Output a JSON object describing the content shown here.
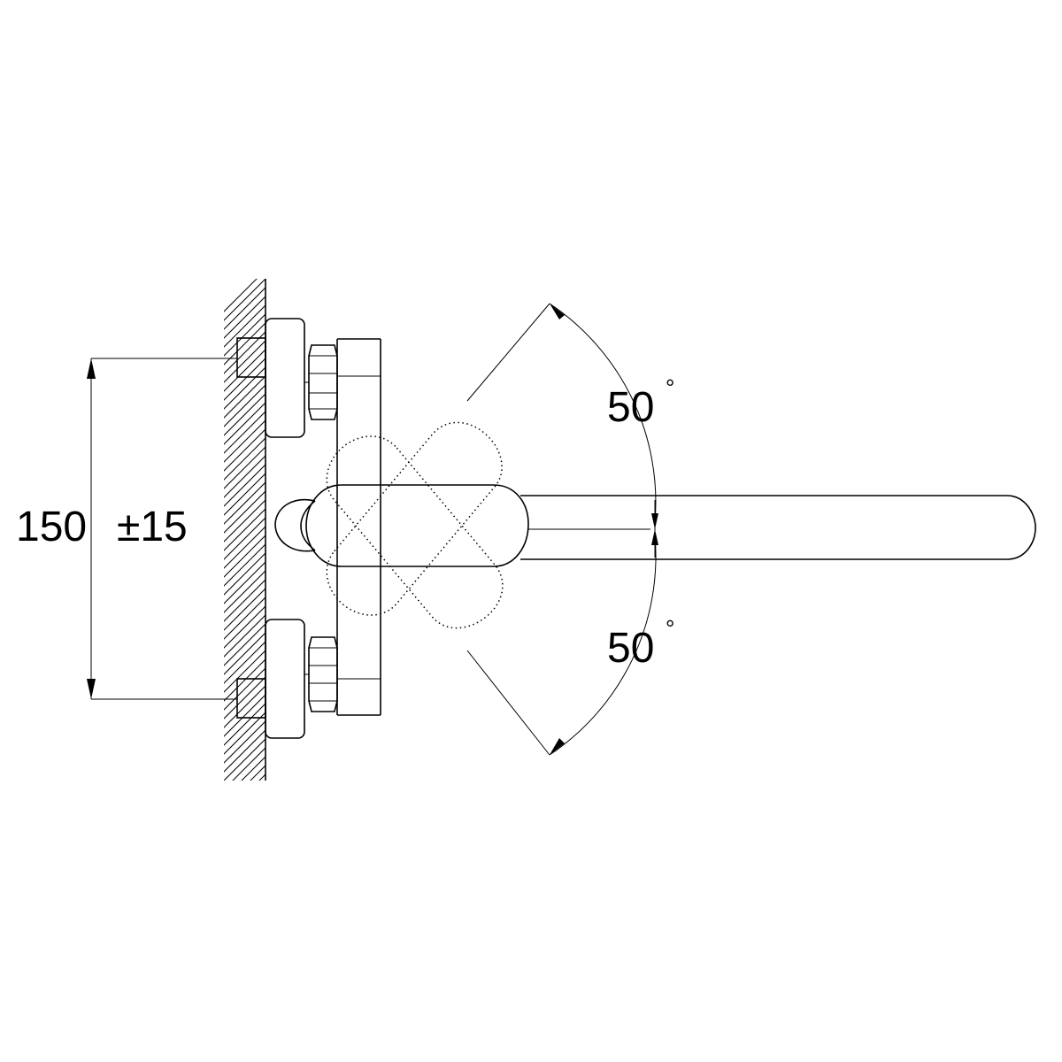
{
  "dimensions": {
    "spacing": "150",
    "tolerance": "±15",
    "angle_up": "50",
    "angle_down": "50",
    "degree_symbol": "°"
  }
}
